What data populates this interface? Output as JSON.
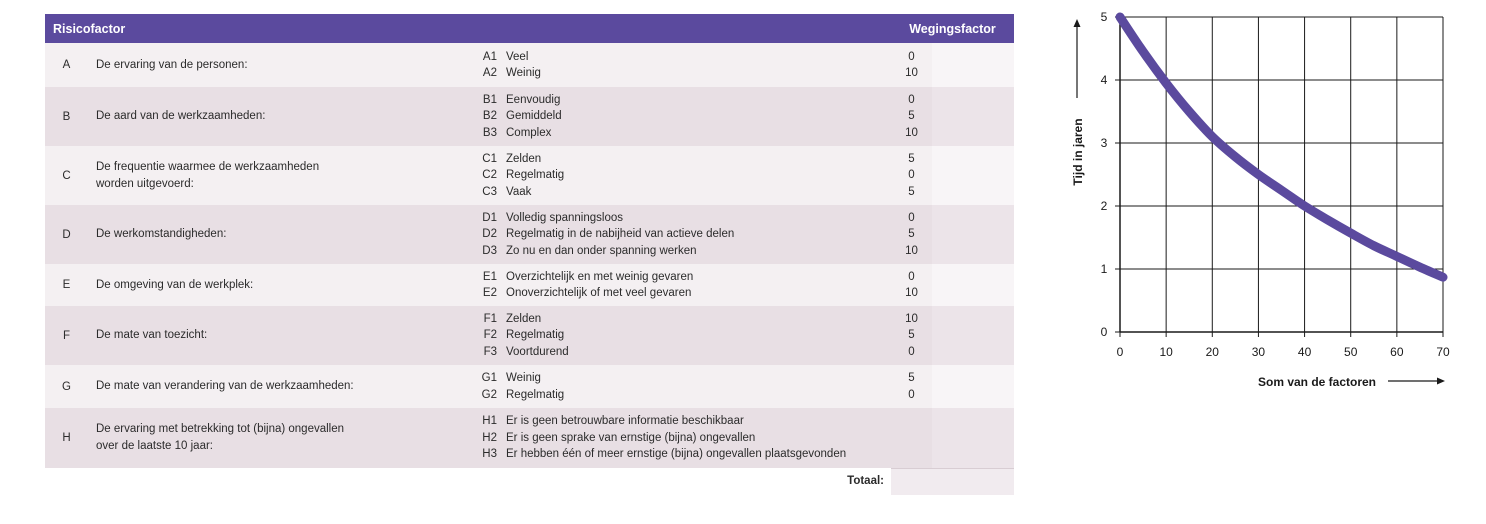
{
  "table": {
    "header_factor": "Risicofactor",
    "header_weight": "Wegingsfactor",
    "rows": [
      {
        "letter": "A",
        "description": [
          "De ervaring van de personen:"
        ],
        "options": [
          {
            "code": "A1",
            "label": "Veel",
            "weight": "0"
          },
          {
            "code": "A2",
            "label": "Weinig",
            "weight": "10"
          }
        ]
      },
      {
        "letter": "B",
        "description": [
          "De aard van de werkzaamheden:"
        ],
        "options": [
          {
            "code": "B1",
            "label": "Eenvoudig",
            "weight": "0"
          },
          {
            "code": "B2",
            "label": "Gemiddeld",
            "weight": "5"
          },
          {
            "code": "B3",
            "label": "Complex",
            "weight": "10"
          }
        ]
      },
      {
        "letter": "C",
        "description": [
          "De frequentie waarmee de werkzaamheden",
          "worden uitgevoerd:"
        ],
        "options": [
          {
            "code": "C1",
            "label": "Zelden",
            "weight": "5"
          },
          {
            "code": "C2",
            "label": "Regelmatig",
            "weight": "0"
          },
          {
            "code": "C3",
            "label": "Vaak",
            "weight": "5"
          }
        ]
      },
      {
        "letter": "D",
        "description": [
          "De werkomstandigheden:"
        ],
        "options": [
          {
            "code": "D1",
            "label": "Volledig spanningsloos",
            "weight": "0"
          },
          {
            "code": "D2",
            "label": "Regelmatig in de nabijheid van actieve delen",
            "weight": "5"
          },
          {
            "code": "D3",
            "label": "Zo nu en dan onder spanning werken",
            "weight": "10"
          }
        ]
      },
      {
        "letter": "E",
        "description": [
          "De omgeving van de werkplek:"
        ],
        "options": [
          {
            "code": "E1",
            "label": "Overzichtelijk en met weinig gevaren",
            "weight": "0"
          },
          {
            "code": "E2",
            "label": "Onoverzichtelijk of met veel gevaren",
            "weight": "10"
          }
        ]
      },
      {
        "letter": "F",
        "description": [
          "De mate van toezicht:"
        ],
        "options": [
          {
            "code": "F1",
            "label": "Zelden",
            "weight": "10"
          },
          {
            "code": "F2",
            "label": "Regelmatig",
            "weight": "5"
          },
          {
            "code": "F3",
            "label": "Voortdurend",
            "weight": "0"
          }
        ]
      },
      {
        "letter": "G",
        "description": [
          "De mate van verandering van de werkzaamheden:"
        ],
        "options": [
          {
            "code": "G1",
            "label": "Weinig",
            "weight": "5"
          },
          {
            "code": "G2",
            "label": "Regelmatig",
            "weight": "0"
          }
        ]
      },
      {
        "letter": "H",
        "description": [
          "De ervaring met betrekking tot (bijna) ongevallen",
          "over de laatste 10 jaar:"
        ],
        "options": [
          {
            "code": "H1",
            "label": "Er is geen betrouwbare informatie beschikbaar",
            "weight": ""
          },
          {
            "code": "H2",
            "label": "Er is geen sprake van ernstige (bijna) ongevallen",
            "weight": ""
          },
          {
            "code": "H3",
            "label": "Er hebben één of meer ernstige (bijna) ongevallen plaatsgevonden",
            "weight": ""
          }
        ]
      }
    ],
    "total_label": "Totaal:"
  },
  "chart_data": {
    "type": "line",
    "xlabel": "Som van de factoren",
    "ylabel": "Tijd in jaren",
    "xlim": [
      0,
      70
    ],
    "ylim": [
      0,
      5
    ],
    "x_ticks": [
      0,
      10,
      20,
      30,
      40,
      50,
      60,
      70
    ],
    "y_ticks": [
      0,
      1,
      2,
      3,
      4,
      5
    ],
    "grid": true,
    "line_color": "#5b4a9e",
    "series": [
      {
        "x": [
          0,
          5,
          10,
          15,
          20,
          25,
          30,
          35,
          40,
          45,
          50,
          55,
          60,
          65,
          70
        ],
        "y": [
          5.0,
          4.45,
          3.95,
          3.5,
          3.1,
          2.78,
          2.5,
          2.25,
          2.0,
          1.78,
          1.57,
          1.37,
          1.2,
          1.03,
          0.87
        ]
      }
    ]
  }
}
